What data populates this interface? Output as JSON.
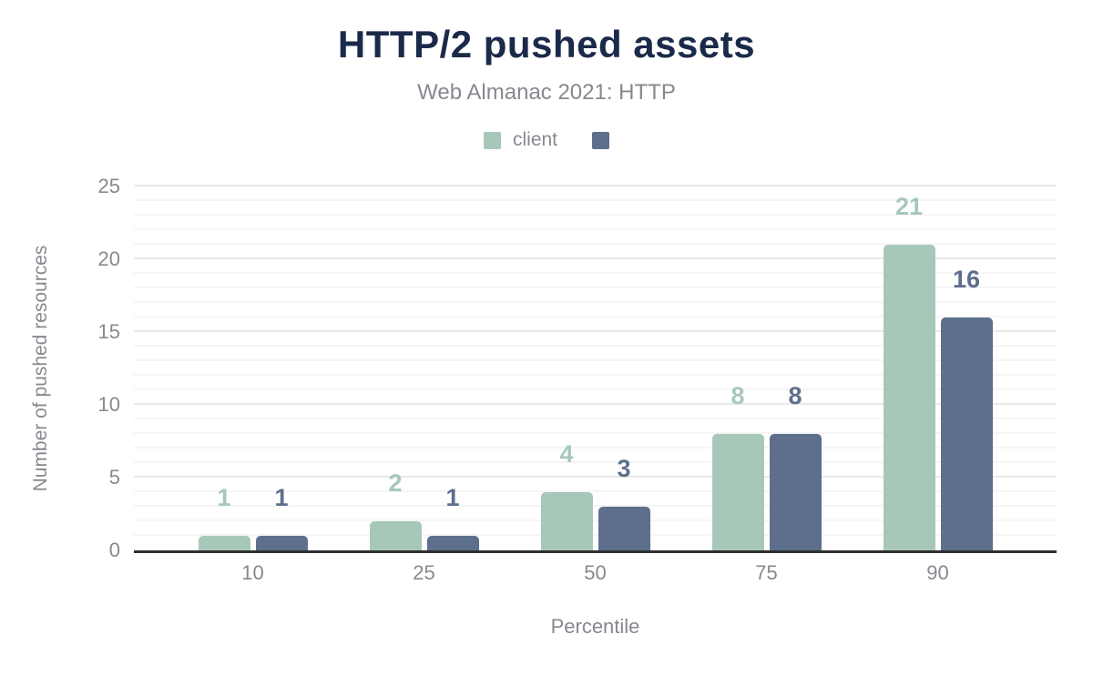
{
  "chart_data": {
    "type": "bar",
    "title": "HTTP/2 pushed assets",
    "subtitle": "Web Almanac 2021: HTTP",
    "categories": [
      "10",
      "25",
      "50",
      "75",
      "90"
    ],
    "series": [
      {
        "name": "client",
        "color": "#a7c8b8",
        "values": [
          1,
          2,
          4,
          8,
          21
        ]
      },
      {
        "name": "",
        "color": "#5d6f8c",
        "values": [
          1,
          1,
          3,
          8,
          16
        ]
      }
    ],
    "xlabel": "Percentile",
    "ylabel": "Number of pushed resources",
    "ylim": [
      0,
      25
    ],
    "yticks": [
      0,
      5,
      10,
      15,
      20,
      25
    ],
    "minor_grid_step": 1,
    "major_grid_step": 5,
    "grid": true,
    "legend_position": "top",
    "data_labels": true
  },
  "colors": {
    "background": "#ffffff",
    "title_text": "#1b2a49",
    "muted_text": "#86898f",
    "axis_line": "#2f2f2f",
    "grid_minor": "#f5f5f5",
    "grid_major": "#e9e9e9"
  }
}
